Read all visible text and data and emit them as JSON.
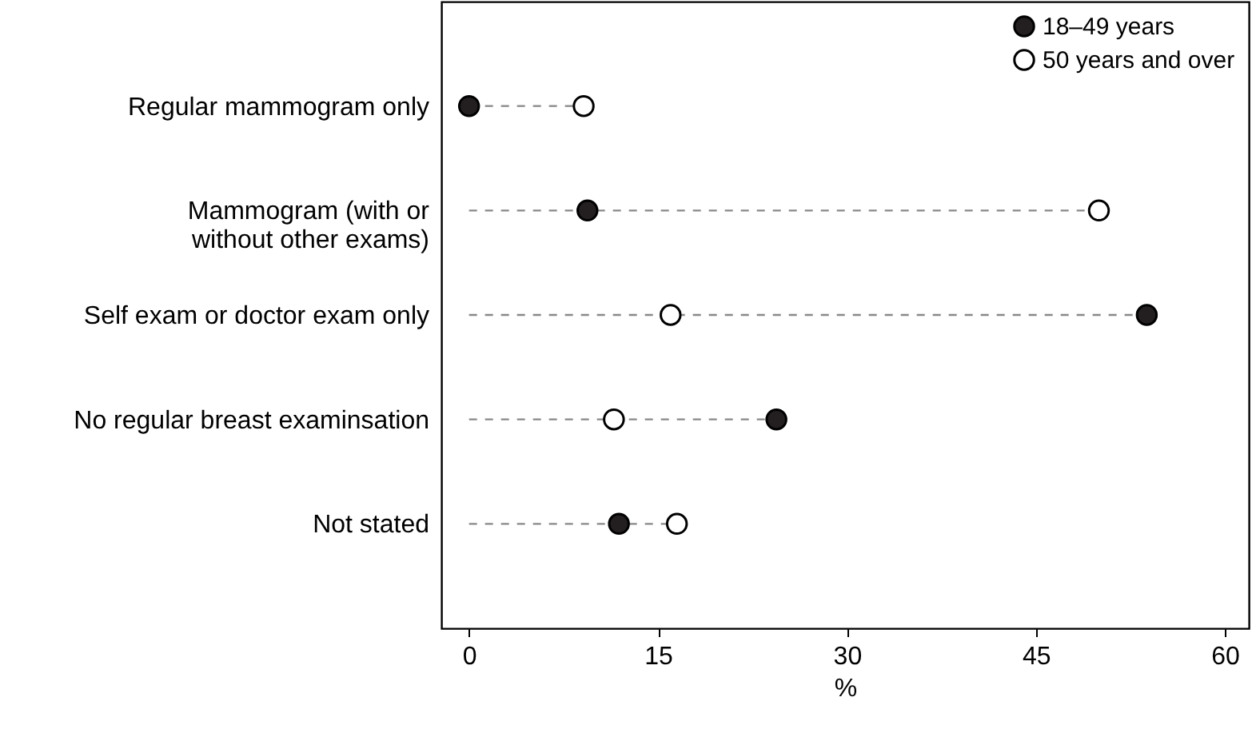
{
  "chart_data": {
    "type": "lollipop",
    "orientation": "horizontal",
    "xlabel": "%",
    "categories": [
      "Regular mammogram only",
      "Mammogram (with or\nwithout other exams)",
      "Self exam or doctor exam only",
      "No regular breast examinsation",
      "Not stated"
    ],
    "series": [
      {
        "name": "18–49 years",
        "color": "#231f20",
        "values": [
          0,
          9.4,
          53.8,
          24.4,
          11.9
        ]
      },
      {
        "name": "50 years and over",
        "color": "#ffffff",
        "values": [
          9.1,
          50.0,
          16.0,
          11.5,
          16.5
        ]
      }
    ],
    "xlim": [
      -2.2,
      61.9
    ],
    "xticks": [
      0,
      15,
      30,
      45,
      60
    ],
    "legend": "top right",
    "marker": "circle",
    "line_style": "dashed"
  }
}
